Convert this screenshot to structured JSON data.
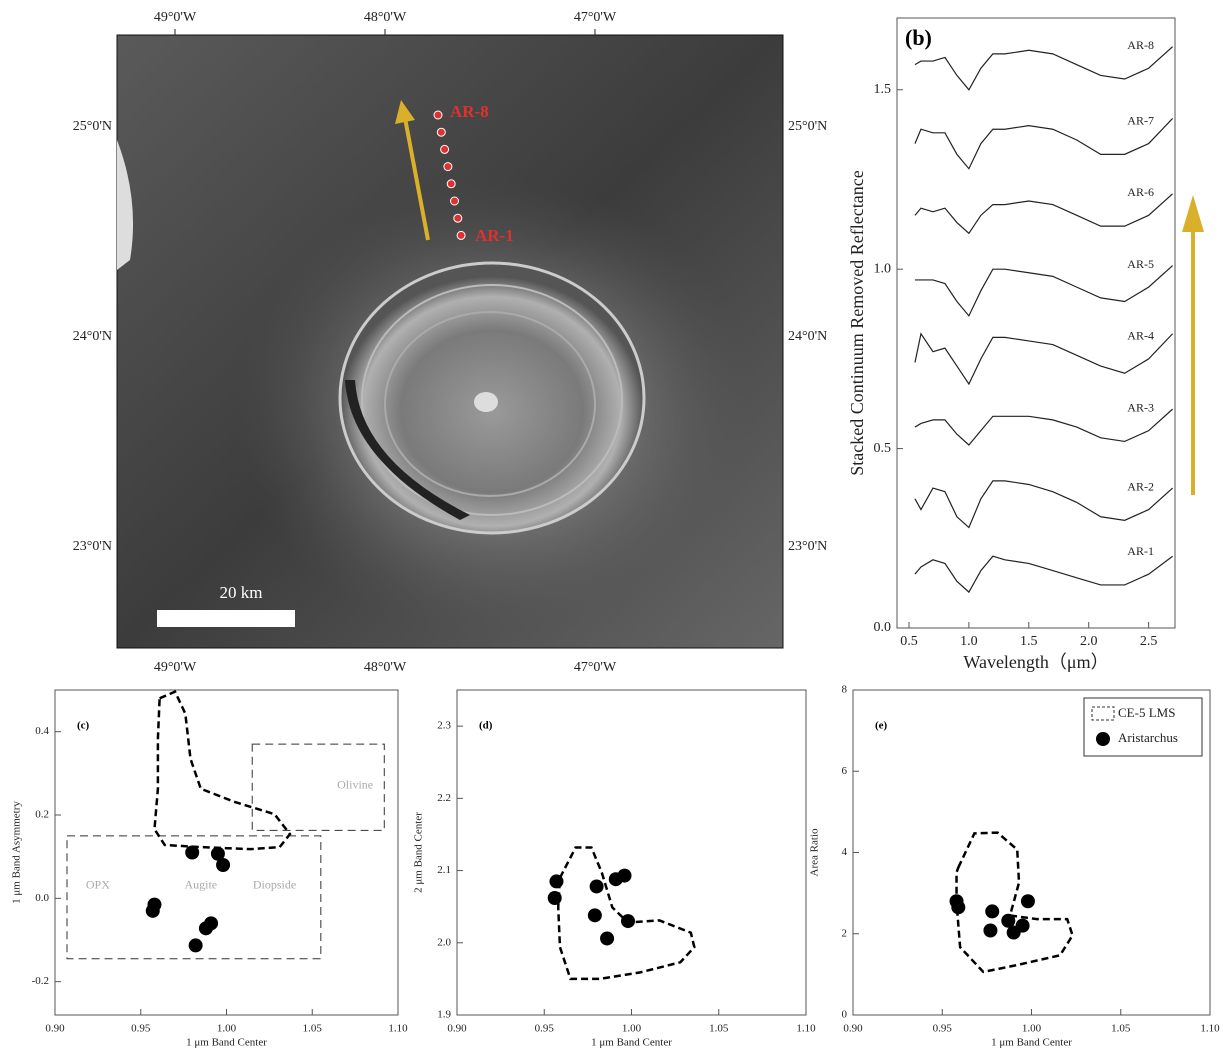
{
  "map": {
    "lon_labels": [
      "49°0'W",
      "48°0'W",
      "47°0'W"
    ],
    "lat_labels": [
      "25°0'N",
      "24°0'N",
      "23°0'N"
    ],
    "scale_bar": "20 km",
    "point_labels": [
      "AR-8",
      "AR-1"
    ]
  },
  "chart_data": [
    {
      "type": "line",
      "panel": "(b)",
      "x_label": "Wavelength（μm）",
      "y_label": "Stacked Continuum Removed Reflectance",
      "xlim": [
        0.4,
        2.72
      ],
      "xticks": [
        0.5,
        {
          "value": 1,
          "label": "1.0"
        },
        1.5,
        {
          "value": 2,
          "label": "2.0"
        },
        2.5
      ],
      "ylim": [
        0,
        1.7
      ],
      "yticks": [
        {
          "value": 0,
          "label": "0.0"
        },
        0.5,
        {
          "value": 1,
          "label": "1.0"
        },
        1.5
      ],
      "x": [
        0.55,
        0.6,
        0.7,
        0.8,
        0.9,
        1.0,
        1.1,
        1.2,
        1.3,
        1.5,
        1.7,
        1.9,
        2.1,
        2.3,
        2.5,
        2.7
      ],
      "series": [
        {
          "name": "AR-1",
          "color": "#222222",
          "values": [
            0.15,
            0.17,
            0.19,
            0.18,
            0.13,
            0.1,
            0.16,
            0.2,
            0.19,
            0.18,
            0.16,
            0.14,
            0.12,
            0.12,
            0.15,
            0.2
          ]
        },
        {
          "name": "AR-2",
          "color": "#222222",
          "values": [
            0.36,
            0.33,
            0.39,
            0.38,
            0.31,
            0.28,
            0.36,
            0.41,
            0.41,
            0.4,
            0.38,
            0.35,
            0.31,
            0.3,
            0.33,
            0.39
          ]
        },
        {
          "name": "AR-3",
          "color": "#222222",
          "values": [
            0.56,
            0.57,
            0.58,
            0.58,
            0.54,
            0.51,
            0.55,
            0.59,
            0.59,
            0.59,
            0.58,
            0.56,
            0.53,
            0.52,
            0.55,
            0.61
          ]
        },
        {
          "name": "AR-4",
          "color": "#222222",
          "values": [
            0.74,
            0.82,
            0.77,
            0.78,
            0.73,
            0.68,
            0.75,
            0.81,
            0.81,
            0.8,
            0.79,
            0.76,
            0.73,
            0.71,
            0.75,
            0.82
          ]
        },
        {
          "name": "AR-5",
          "color": "#222222",
          "values": [
            0.97,
            0.97,
            0.97,
            0.96,
            0.91,
            0.87,
            0.94,
            1.0,
            1.0,
            0.99,
            0.98,
            0.95,
            0.92,
            0.91,
            0.95,
            1.01
          ]
        },
        {
          "name": "AR-6",
          "color": "#222222",
          "values": [
            1.15,
            1.17,
            1.16,
            1.17,
            1.13,
            1.1,
            1.15,
            1.18,
            1.18,
            1.19,
            1.18,
            1.15,
            1.12,
            1.12,
            1.15,
            1.21
          ]
        },
        {
          "name": "AR-7",
          "color": "#222222",
          "values": [
            1.35,
            1.39,
            1.38,
            1.38,
            1.32,
            1.28,
            1.35,
            1.39,
            1.39,
            1.4,
            1.39,
            1.36,
            1.32,
            1.32,
            1.35,
            1.42
          ]
        },
        {
          "name": "AR-8",
          "color": "#222222",
          "values": [
            1.57,
            1.58,
            1.58,
            1.59,
            1.54,
            1.5,
            1.56,
            1.6,
            1.6,
            1.61,
            1.6,
            1.57,
            1.54,
            1.53,
            1.56,
            1.62
          ]
        }
      ]
    },
    {
      "type": "scatter",
      "panel": "(c)",
      "x_label": "1 μm Band Center",
      "y_label": "1 μm Band Asymmetry",
      "xlim": [
        0.9,
        1.1
      ],
      "xticks": [
        {
          "value": 0.9,
          "label": "0.90"
        },
        0.95,
        {
          "value": 1,
          "label": "1.00"
        },
        1.05,
        {
          "value": 1.1,
          "label": "1.10"
        }
      ],
      "ylim": [
        -0.28,
        0.5
      ],
      "yticks": [
        -0.2,
        {
          "value": 0,
          "label": "0.0"
        },
        0.2,
        0.4
      ],
      "regions": [
        {
          "x": [
            0.907,
            1.055
          ],
          "y": [
            -0.145,
            0.15
          ]
        },
        {
          "x": [
            1.015,
            1.092
          ],
          "y": [
            0.163,
            0.37
          ]
        }
      ],
      "annotations": [
        {
          "text": "OPX",
          "x": 0.925,
          "y": 0.03
        },
        {
          "text": "Augite",
          "x": 0.985,
          "y": 0.03
        },
        {
          "text": "Diopside",
          "x": 1.028,
          "y": 0.03
        },
        {
          "text": "Olivine",
          "x": 1.075,
          "y": 0.27
        }
      ],
      "outline": {
        "x": [
          0.961,
          0.97,
          0.976,
          0.979,
          0.985,
          1.005,
          1.028,
          1.037,
          1.031,
          1.014,
          0.985,
          0.964,
          0.958,
          0.96,
          0.96
        ],
        "y": [
          0.48,
          0.496,
          0.443,
          0.335,
          0.263,
          0.231,
          0.202,
          0.154,
          0.123,
          0.118,
          0.123,
          0.128,
          0.166,
          0.263,
          0.383
        ]
      },
      "series": [
        {
          "color": "#000000",
          "x": [
            0.98,
            0.995,
            0.998,
            0.958,
            0.957,
            0.991,
            0.988,
            0.982
          ],
          "values": [
            0.11,
            0.107,
            0.08,
            -0.015,
            -0.03,
            -0.06,
            -0.072,
            -0.113
          ]
        }
      ]
    },
    {
      "type": "scatter",
      "panel": "(d)",
      "x_label": "1 μm Band Center",
      "y_label": "2 μm Band Center",
      "xlim": [
        0.9,
        1.1
      ],
      "xticks": [
        {
          "value": 0.9,
          "label": "0.90"
        },
        0.95,
        {
          "value": 1,
          "label": "1.00"
        },
        1.05,
        {
          "value": 1.1,
          "label": "1.10"
        }
      ],
      "ylim": [
        1.9,
        2.35
      ],
      "yticks": [
        1.9,
        {
          "value": 2,
          "label": "2.0"
        },
        2.1,
        2.2,
        2.3
      ],
      "outline": {
        "x": [
          0.959,
          0.968,
          0.977,
          0.983,
          0.989,
          0.998,
          1.016,
          1.034,
          1.036,
          1.028,
          1.005,
          0.982,
          0.965,
          0.959,
          0.958
        ],
        "y": [
          2.09,
          2.132,
          2.132,
          2.097,
          2.049,
          2.028,
          2.031,
          2.014,
          1.994,
          1.973,
          1.959,
          1.95,
          1.95,
          1.994,
          2.049
        ]
      },
      "series": [
        {
          "color": "#000000",
          "x": [
            0.957,
            0.956,
            0.98,
            0.991,
            0.996,
            0.979,
            0.986,
            0.998
          ],
          "values": [
            2.085,
            2.062,
            2.078,
            2.088,
            2.093,
            2.038,
            2.006,
            2.03
          ]
        }
      ]
    },
    {
      "type": "scatter",
      "panel": "(e)",
      "x_label": "1 μm Band Center",
      "y_label": "Area Ratio",
      "xlim": [
        0.9,
        1.1
      ],
      "xticks": [
        {
          "value": 0.9,
          "label": "0.90"
        },
        0.95,
        {
          "value": 1,
          "label": "1.00"
        },
        1.05,
        {
          "value": 1.1,
          "label": "1.10"
        }
      ],
      "ylim": [
        0,
        8
      ],
      "yticks": [
        0,
        2,
        4,
        6,
        8
      ],
      "legend": "upper right",
      "outline": {
        "name": "CE-5 LMS",
        "x": [
          0.959,
          0.968,
          0.981,
          0.992,
          0.993,
          0.988,
          1.003,
          1.02,
          1.023,
          1.016,
          0.992,
          0.973,
          0.96,
          0.958,
          0.958
        ],
        "y": [
          3.63,
          4.47,
          4.49,
          4.07,
          3.26,
          2.45,
          2.36,
          2.36,
          1.96,
          1.47,
          1.23,
          1.06,
          1.67,
          2.77,
          3.51
        ]
      },
      "series": [
        {
          "name": "Aristarchus",
          "color": "#000000",
          "x": [
            0.958,
            0.959,
            0.978,
            0.977,
            0.987,
            0.99,
            0.995,
            0.998
          ],
          "values": [
            2.8,
            2.65,
            2.55,
            2.08,
            2.32,
            2.03,
            2.2,
            2.8
          ]
        }
      ]
    }
  ]
}
